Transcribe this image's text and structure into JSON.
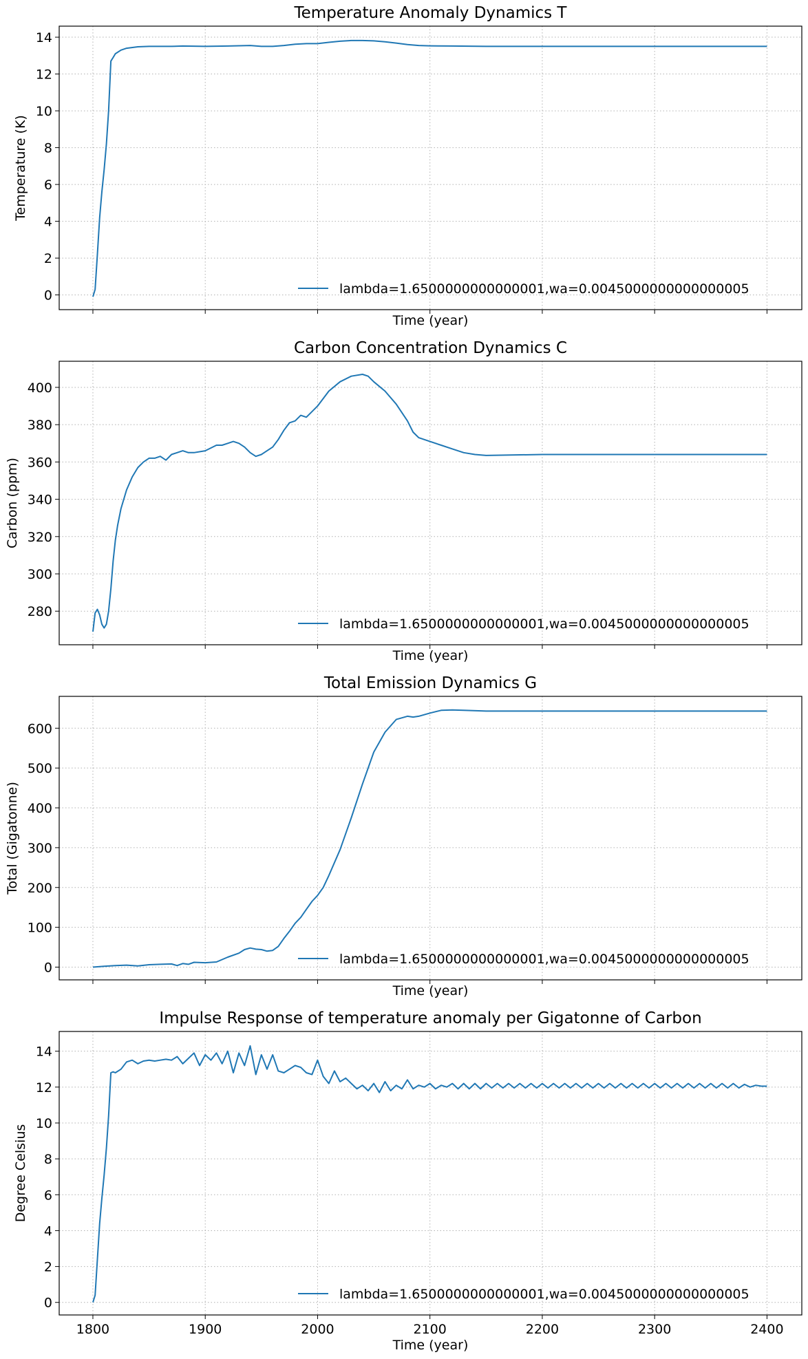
{
  "figure": {
    "line_color": "#1f77b4",
    "grid": true,
    "grid_style": "dotted"
  },
  "chart_data": [
    {
      "type": "line",
      "title": "Temperature Anomaly Dynamics T",
      "xlabel": "Time (year)",
      "ylabel": "Temperature (K)",
      "xlim": [
        1770,
        2431
      ],
      "ylim": [
        -0.8,
        14.6
      ],
      "xticks": [
        1800,
        1900,
        2000,
        2100,
        2200,
        2300,
        2400
      ],
      "yticks": [
        0,
        2,
        4,
        6,
        8,
        10,
        12,
        14
      ],
      "show_xtick_labels": false,
      "legend": "lower right",
      "series": [
        {
          "name": "lambda=1.6500000000000001,wa=0.0045000000000000005",
          "x": [
            1800,
            1802,
            1804,
            1806,
            1808,
            1810,
            1812,
            1814,
            1816,
            1818,
            1820,
            1825,
            1830,
            1840,
            1850,
            1860,
            1870,
            1880,
            1900,
            1920,
            1940,
            1950,
            1960,
            1970,
            1980,
            1990,
            2000,
            2010,
            2020,
            2030,
            2040,
            2050,
            2060,
            2070,
            2080,
            2090,
            2100,
            2120,
            2150,
            2200,
            2300,
            2400
          ],
          "y": [
            -0.1,
            0.3,
            2.2,
            4.2,
            5.6,
            6.8,
            8.2,
            10.0,
            12.7,
            12.9,
            13.1,
            13.3,
            13.4,
            13.48,
            13.5,
            13.5,
            13.5,
            13.52,
            13.5,
            13.52,
            13.55,
            13.5,
            13.5,
            13.55,
            13.62,
            13.65,
            13.65,
            13.72,
            13.78,
            13.82,
            13.82,
            13.8,
            13.75,
            13.68,
            13.6,
            13.55,
            13.53,
            13.52,
            13.5,
            13.5,
            13.5,
            13.5
          ]
        }
      ]
    },
    {
      "type": "line",
      "title": "Carbon Concentration Dynamics C",
      "xlabel": "Time (year)",
      "ylabel": "Carbon (ppm)",
      "xlim": [
        1770,
        2431
      ],
      "ylim": [
        262,
        414
      ],
      "xticks": [
        1800,
        1900,
        2000,
        2100,
        2200,
        2300,
        2400
      ],
      "yticks": [
        280,
        300,
        320,
        340,
        360,
        380,
        400
      ],
      "show_xtick_labels": false,
      "legend": "lower right",
      "series": [
        {
          "name": "lambda=1.6500000000000001,wa=0.0045000000000000005",
          "x": [
            1800,
            1802,
            1804,
            1806,
            1808,
            1810,
            1812,
            1814,
            1816,
            1818,
            1820,
            1822,
            1825,
            1830,
            1835,
            1840,
            1845,
            1850,
            1855,
            1860,
            1865,
            1870,
            1875,
            1880,
            1885,
            1890,
            1900,
            1910,
            1915,
            1920,
            1925,
            1930,
            1935,
            1940,
            1945,
            1950,
            1955,
            1960,
            1965,
            1970,
            1975,
            1980,
            1985,
            1990,
            1995,
            2000,
            2010,
            2020,
            2030,
            2040,
            2045,
            2050,
            2060,
            2070,
            2080,
            2085,
            2090,
            2100,
            2110,
            2120,
            2130,
            2140,
            2150,
            2200,
            2300,
            2400
          ],
          "y": [
            269,
            279,
            281,
            278,
            273,
            271,
            273,
            280,
            292,
            307,
            318,
            326,
            335,
            345,
            352,
            357,
            360,
            362,
            362,
            363,
            361,
            364,
            365,
            366,
            365,
            365,
            366,
            369,
            369,
            370,
            371,
            370,
            368,
            365,
            363,
            364,
            366,
            368,
            372,
            377,
            381,
            382,
            385,
            384,
            387,
            390,
            398,
            403,
            406,
            407,
            406,
            403,
            398,
            391,
            382,
            376,
            373,
            371,
            369,
            367,
            365,
            364,
            363.5,
            364,
            364,
            364
          ]
        }
      ]
    },
    {
      "type": "line",
      "title": "Total Emission Dynamics G",
      "xlabel": "Time (year)",
      "ylabel": "Total (Gigatonne)",
      "xlim": [
        1770,
        2431
      ],
      "ylim": [
        -32,
        680
      ],
      "xticks": [
        1800,
        1900,
        2000,
        2100,
        2200,
        2300,
        2400
      ],
      "yticks": [
        0,
        100,
        200,
        300,
        400,
        500,
        600
      ],
      "show_xtick_labels": false,
      "legend": "lower right",
      "series": [
        {
          "name": "lambda=1.6500000000000001,wa=0.0045000000000000005",
          "x": [
            1800,
            1810,
            1820,
            1830,
            1840,
            1850,
            1860,
            1870,
            1875,
            1880,
            1885,
            1890,
            1900,
            1910,
            1920,
            1930,
            1935,
            1940,
            1945,
            1950,
            1955,
            1960,
            1965,
            1970,
            1975,
            1980,
            1985,
            1990,
            1995,
            2000,
            2005,
            2010,
            2020,
            2030,
            2040,
            2050,
            2060,
            2070,
            2080,
            2085,
            2090,
            2100,
            2110,
            2120,
            2130,
            2150,
            2200,
            2300,
            2400
          ],
          "y": [
            0,
            2,
            4,
            5,
            3,
            6,
            7,
            8,
            4,
            9,
            7,
            12,
            11,
            13,
            25,
            35,
            44,
            48,
            45,
            44,
            40,
            42,
            52,
            72,
            90,
            110,
            125,
            145,
            165,
            180,
            200,
            230,
            295,
            375,
            460,
            540,
            590,
            622,
            630,
            628,
            630,
            638,
            645,
            646,
            645,
            643,
            643,
            643,
            643
          ]
        }
      ]
    },
    {
      "type": "line",
      "title": "Impulse Response of temperature anomaly per Gigatonne of Carbon",
      "xlabel": "Time (year)",
      "ylabel": "Degree Celsius",
      "xlim": [
        1770,
        2431
      ],
      "ylim": [
        -0.7,
        15.1
      ],
      "xticks": [
        1800,
        1900,
        2000,
        2100,
        2200,
        2300,
        2400
      ],
      "yticks": [
        0,
        2,
        4,
        6,
        8,
        10,
        12,
        14
      ],
      "show_xtick_labels": true,
      "legend": "lower right",
      "series": [
        {
          "name": "lambda=1.6500000000000001,wa=0.0045000000000000005",
          "x": [
            1800,
            1802,
            1804,
            1806,
            1808,
            1810,
            1812,
            1814,
            1816,
            1818,
            1820,
            1825,
            1830,
            1835,
            1840,
            1845,
            1850,
            1855,
            1860,
            1865,
            1870,
            1875,
            1880,
            1885,
            1890,
            1895,
            1900,
            1905,
            1910,
            1915,
            1920,
            1925,
            1930,
            1935,
            1940,
            1945,
            1950,
            1955,
            1960,
            1965,
            1970,
            1975,
            1980,
            1985,
            1990,
            1995,
            2000,
            2005,
            2010,
            2015,
            2020,
            2025,
            2030,
            2035,
            2040,
            2045,
            2050,
            2055,
            2060,
            2065,
            2070,
            2075,
            2080,
            2085,
            2090,
            2095,
            2100,
            2105,
            2110,
            2115,
            2120,
            2125,
            2130,
            2135,
            2140,
            2145,
            2150,
            2155,
            2160,
            2165,
            2170,
            2175,
            2180,
            2185,
            2190,
            2195,
            2200,
            2205,
            2210,
            2215,
            2220,
            2225,
            2230,
            2235,
            2240,
            2245,
            2250,
            2255,
            2260,
            2265,
            2270,
            2275,
            2280,
            2285,
            2290,
            2295,
            2300,
            2305,
            2310,
            2315,
            2320,
            2325,
            2330,
            2335,
            2340,
            2345,
            2350,
            2355,
            2360,
            2365,
            2370,
            2375,
            2380,
            2385,
            2390,
            2395,
            2400
          ],
          "y": [
            0,
            0.4,
            2.4,
            4.4,
            5.8,
            7.1,
            8.6,
            10.4,
            12.8,
            12.85,
            12.8,
            13.0,
            13.4,
            13.5,
            13.3,
            13.45,
            13.5,
            13.45,
            13.5,
            13.55,
            13.5,
            13.7,
            13.3,
            13.6,
            13.9,
            13.2,
            13.8,
            13.5,
            13.9,
            13.3,
            14.0,
            12.8,
            13.9,
            13.2,
            14.3,
            12.7,
            13.8,
            13.0,
            13.8,
            12.9,
            12.8,
            13.0,
            13.2,
            13.1,
            12.8,
            12.7,
            13.5,
            12.6,
            12.2,
            12.9,
            12.3,
            12.5,
            12.2,
            11.9,
            12.1,
            11.8,
            12.2,
            11.7,
            12.3,
            11.8,
            12.1,
            11.9,
            12.4,
            11.9,
            12.1,
            12.0,
            12.2,
            11.9,
            12.1,
            12.0,
            12.2,
            11.9,
            12.2,
            11.9,
            12.2,
            11.9,
            12.2,
            11.95,
            12.2,
            11.95,
            12.2,
            11.95,
            12.2,
            11.95,
            12.2,
            11.95,
            12.2,
            11.95,
            12.2,
            11.95,
            12.2,
            11.95,
            12.2,
            11.95,
            12.2,
            11.95,
            12.2,
            11.95,
            12.2,
            11.95,
            12.2,
            11.95,
            12.2,
            11.95,
            12.2,
            11.95,
            12.2,
            11.95,
            12.2,
            11.95,
            12.2,
            11.95,
            12.2,
            11.95,
            12.2,
            11.95,
            12.2,
            11.95,
            12.2,
            11.95,
            12.2,
            11.95,
            12.15,
            12.0,
            12.1,
            12.05,
            12.05
          ]
        }
      ]
    }
  ]
}
